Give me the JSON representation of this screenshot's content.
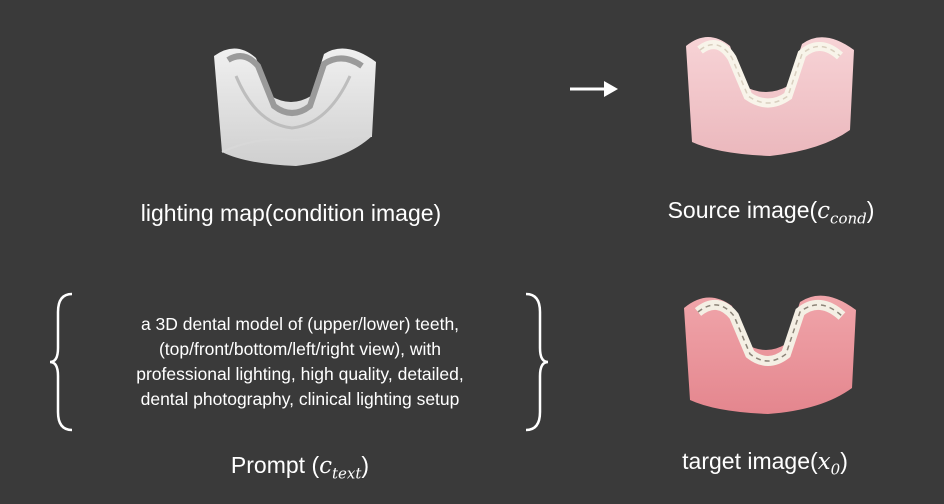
{
  "panels": {
    "lighting": {
      "label": "lighting map(condition image)"
    },
    "source": {
      "label_text": "Source image(",
      "label_math_base": "c",
      "label_math_sub": "cond",
      "label_close": ")"
    },
    "prompt": {
      "label_text": "Prompt (",
      "label_math_base": "c",
      "label_math_sub": "text",
      "label_close": ")",
      "lines": [
        "a 3D dental model of (upper/lower) teeth,",
        "(top/front/bottom/left/right view), with",
        "professional lighting, high quality, detailed,",
        "dental photography, clinical lighting setup"
      ]
    },
    "target": {
      "label_text": "target image(",
      "label_math_base": "x",
      "label_math_sub": "0",
      "label_close": ")"
    }
  },
  "colors": {
    "background": "#3a3a3a",
    "lighting_model": "#e2e2e2",
    "source_model": "#f2c4c8",
    "target_model": "#e8888f",
    "arrow": "#ffffff"
  }
}
